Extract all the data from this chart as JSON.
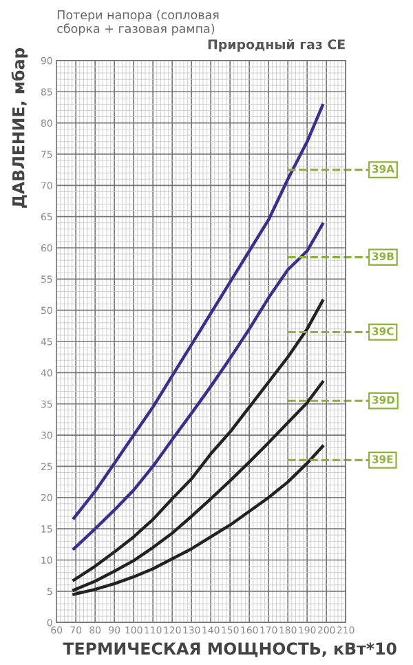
{
  "chart_data": {
    "type": "line",
    "title": "Природный газ CE",
    "subtitle": "Потери напора (сопловая\nсборка + газовая рампа)",
    "xlabel": "ТЕРМИЧЕСКАЯ МОЩНОСТЬ, кВт*10",
    "ylabel": "ДАВЛЕНИЕ, мбар",
    "x": [
      69,
      80,
      90,
      100,
      110,
      120,
      130,
      140,
      150,
      160,
      170,
      180,
      190,
      198
    ],
    "series": [
      {
        "color": "#3d2e8c",
        "values": [
          16.7,
          21,
          25.5,
          30,
          34.5,
          39.5,
          44.5,
          49.5,
          54.5,
          59.5,
          64.5,
          71,
          77,
          82.8
        ]
      },
      {
        "color": "#3d2e8c",
        "values": [
          11.8,
          15,
          18,
          21.2,
          25,
          29.3,
          33.5,
          37.8,
          42.3,
          47,
          52,
          56.5,
          59.5,
          63.8
        ]
      },
      {
        "color": "#222222",
        "values": [
          6.8,
          9,
          11.3,
          13.7,
          16.5,
          19.8,
          23,
          27,
          30.5,
          34.5,
          38.5,
          42.5,
          47,
          51.5
        ]
      },
      {
        "color": "#222222",
        "values": [
          5.2,
          6.6,
          8.2,
          9.9,
          12,
          14.3,
          17,
          19.8,
          22.7,
          25.7,
          28.8,
          32,
          35.2,
          38.5
        ]
      },
      {
        "color": "#222222",
        "values": [
          4.5,
          5.3,
          6.2,
          7.3,
          8.6,
          10.2,
          11.8,
          13.7,
          15.6,
          17.8,
          20,
          22.5,
          25.5,
          28.2
        ]
      }
    ],
    "ref_lines": [
      {
        "axis": "y",
        "value": 72.5,
        "label": "39A",
        "color": "#8db33a",
        "line_style": "dashed"
      },
      {
        "axis": "y",
        "value": 58.5,
        "label": "39B",
        "color": "#8db33a",
        "line_style": "dashed"
      },
      {
        "axis": "y",
        "value": 46.5,
        "label": "39C",
        "color": "#8db33a",
        "line_style": "dashed"
      },
      {
        "axis": "y",
        "value": 35.5,
        "label": "39D",
        "color": "#8db33a",
        "line_style": "dashed"
      },
      {
        "axis": "y",
        "value": 26,
        "label": "39E",
        "color": "#8db33a",
        "line_style": "dashed"
      }
    ],
    "xlim": [
      60,
      210
    ],
    "xticks": [
      60,
      70,
      80,
      90,
      100,
      110,
      120,
      130,
      140,
      150,
      160,
      170,
      180,
      190,
      200,
      210
    ],
    "ylim": [
      0,
      90
    ],
    "yticks": [
      0,
      5,
      10,
      15,
      20,
      25,
      30,
      35,
      40,
      45,
      50,
      55,
      60,
      65,
      70,
      75,
      80,
      85,
      90
    ],
    "grid": true,
    "line_style": "solid",
    "marker": "none",
    "legend": false
  }
}
